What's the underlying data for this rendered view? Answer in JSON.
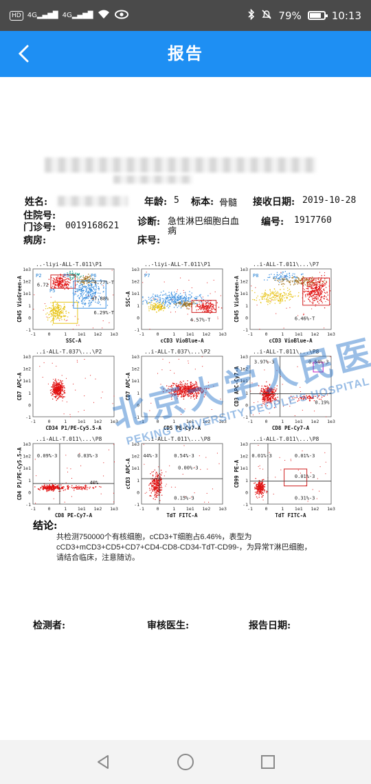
{
  "status_bar": {
    "hd_label": "HD",
    "signal_label_1": "4G",
    "signal_label_2": "4G",
    "battery_percent": "79%",
    "battery_level": 0.79,
    "time": "10:13"
  },
  "header": {
    "title": "报告"
  },
  "report": {
    "name_label": "姓名:",
    "age_label": "年龄:",
    "age_value": "5",
    "specimen_label": "标本:",
    "specimen_value": "骨髓",
    "received_label": "接收日期:",
    "received_value": "2019-10-28",
    "inpatient_label": "住院号:",
    "outpatient_label": "门诊号:",
    "outpatient_value": "0019168621",
    "diagnosis_label": "诊断:",
    "diagnosis_value_line1": "急性淋巴细胞白血",
    "diagnosis_value_line2": "病",
    "number_label": "编号:",
    "number_value": "1917760",
    "ward_label": "病房:",
    "bed_label": "床号:",
    "conclusion_label": "结论:",
    "conclusion_text": "共检测750000个有核细胞，cCD3+T细胞占6.46%，表型为cCD3+mCD3+CD5+CD7+CD4-CD8-CD34-TdT-CD99-，为异常T淋巴细胞，请结合临床，注意随访。",
    "tester_label": "检测者:",
    "reviewer_label": "审核医生:",
    "report_date_label": "报告日期:"
  },
  "watermark": {
    "cn": "北京大学人民医院",
    "en": "PEKING UNIVERSITY PEOPLE'S HOSPITAL"
  },
  "plots": [
    {
      "title": "..-liyi-ALL-T.011\\P1",
      "xlabel": "SSC-A",
      "ylabel": "CD45 VioGreen-A",
      "gates": [
        "P2",
        "P5",
        "P3",
        "P4",
        "P6"
      ],
      "gate_values": [
        "4.77%-T",
        "6.72",
        "47.88%",
        "6.29%-T"
      ]
    },
    {
      "title": "..-liyi-ALL-T.011\\P1",
      "xlabel": "cCD3 VioBlue-A",
      "ylabel": "SSC-A",
      "gates": [
        "P7"
      ],
      "gate_values": [
        "4.57%-T"
      ]
    },
    {
      "title": "..i-ALL-T.011\\...\\P7",
      "xlabel": "cCD3 VioBlue-A",
      "ylabel": "CD45 VioGreen-A",
      "gates": [
        "P8"
      ],
      "gate_values": [
        "6.46%-T"
      ]
    },
    {
      "title": "..i-ALL-T.037\\...\\P2",
      "xlabel": "CD34 P1/PE-Cy5.5-A",
      "ylabel": "CD7 APC-A",
      "gates": [],
      "gate_values": []
    },
    {
      "title": "..i-ALL-T.037\\...\\P2",
      "xlabel": "CD5 PE-Cy7-A",
      "ylabel": "CD7 APC-A",
      "gates": [],
      "gate_values": []
    },
    {
      "title": "..i-ALL-T.011\\...\\P8",
      "xlabel": "CD8 PE-Cy7-A",
      "ylabel": "CD3 APC-Cy7-A",
      "gates": [],
      "gate_values": [
        "3.97%-3",
        "0.54%-3",
        "0.19%"
      ]
    },
    {
      "title": "..i-ALL-T.011\\...\\P8",
      "xlabel": "CD8 PE-Cy7-A",
      "ylabel": "CD4 P1/PE-Cy5.5-A",
      "gates": [],
      "gate_values": [
        "0.09%-3",
        "0.03%-3",
        "40%"
      ]
    },
    {
      "title": "..i-ALL-T.011\\...\\P8",
      "xlabel": "TdT FITC-A",
      "ylabel": "cCD3 APC-A",
      "gates": [],
      "gate_values": [
        "44%-3",
        "0.54%-3",
        "0.00%-3",
        "0.15%-3"
      ]
    },
    {
      "title": "..i-ALL-T.011\\...\\P8",
      "xlabel": "TdT FITC-A",
      "ylabel": "CD99 PE-A",
      "gates": [],
      "gate_values": [
        "0.01%-3",
        "0.01%-3",
        "0.01%-3",
        "0.31%-3"
      ]
    }
  ],
  "axis_ticks": [
    "-1",
    "0",
    "1",
    "1e1",
    "1e2",
    "1e3"
  ],
  "colors": {
    "header_blue": "#1e8ff3",
    "status_bar": "#4a4a4a",
    "dots_red": "#e01010",
    "dots_yellow": "#e8c51a",
    "dots_blue": "#3a8fe0",
    "dots_brown": "#a0701a"
  },
  "nav": {
    "back_icon": "triangle-back-icon",
    "home_icon": "circle-home-icon",
    "recent_icon": "square-recent-icon"
  }
}
